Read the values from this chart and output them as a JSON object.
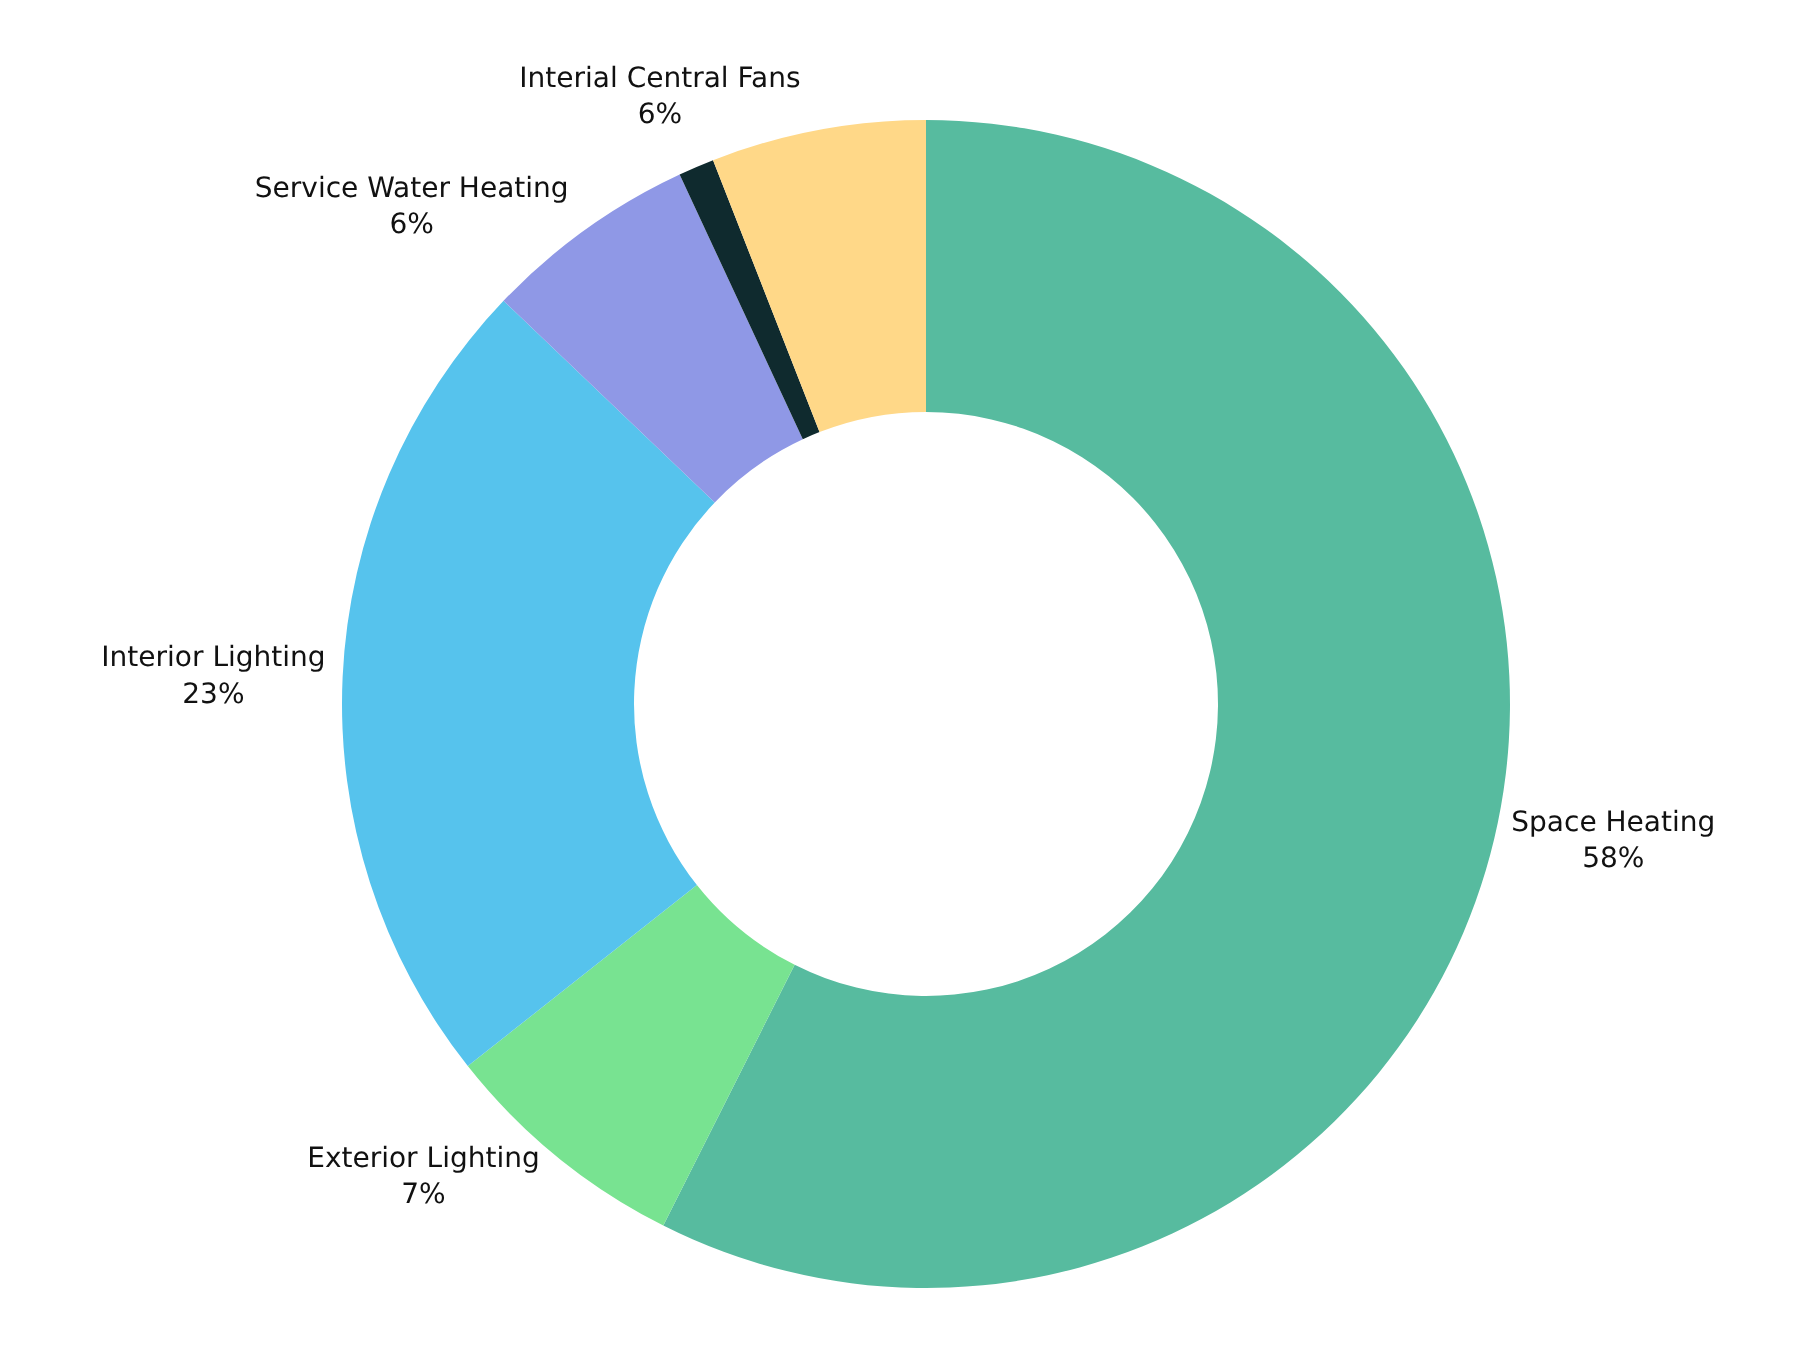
{
  "chart_data": {
    "type": "donut",
    "categories": [
      "Space Heating",
      "Exterior Lighting",
      "Interior Lighting",
      "Service Water Heating",
      null,
      "Interial Central Fans"
    ],
    "values": [
      58,
      7,
      23,
      6,
      1,
      6
    ],
    "value_labels": [
      "58%",
      "7%",
      "23%",
      "6%",
      null,
      "6%"
    ],
    "colors": [
      "#57bb9f",
      "#78e391",
      "#56c3ed",
      "#8f98e6",
      "#0f2a2e",
      "#ffd888"
    ],
    "legend": false
  }
}
